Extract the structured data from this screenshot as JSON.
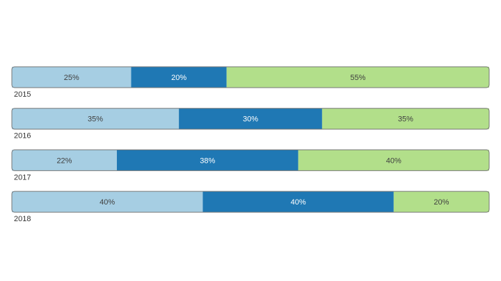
{
  "chart_data": {
    "type": "bar",
    "orientation": "horizontal",
    "stacked": true,
    "categories": [
      "2015",
      "2016",
      "2017",
      "2018"
    ],
    "xlim": [
      0,
      100
    ],
    "series": [
      {
        "color": "#a6cee3",
        "values": [
          25,
          35,
          22,
          40
        ],
        "value_labels": [
          "25%",
          "35%",
          "22%",
          "40%"
        ]
      },
      {
        "color": "#1f78b4",
        "values": [
          20,
          30,
          38,
          40
        ],
        "value_labels": [
          "20%",
          "30%",
          "38%",
          "40%"
        ]
      },
      {
        "color": "#b2df8a",
        "values": [
          55,
          35,
          40,
          20
        ],
        "value_labels": [
          "55%",
          "35%",
          "40%",
          "20%"
        ]
      }
    ]
  }
}
